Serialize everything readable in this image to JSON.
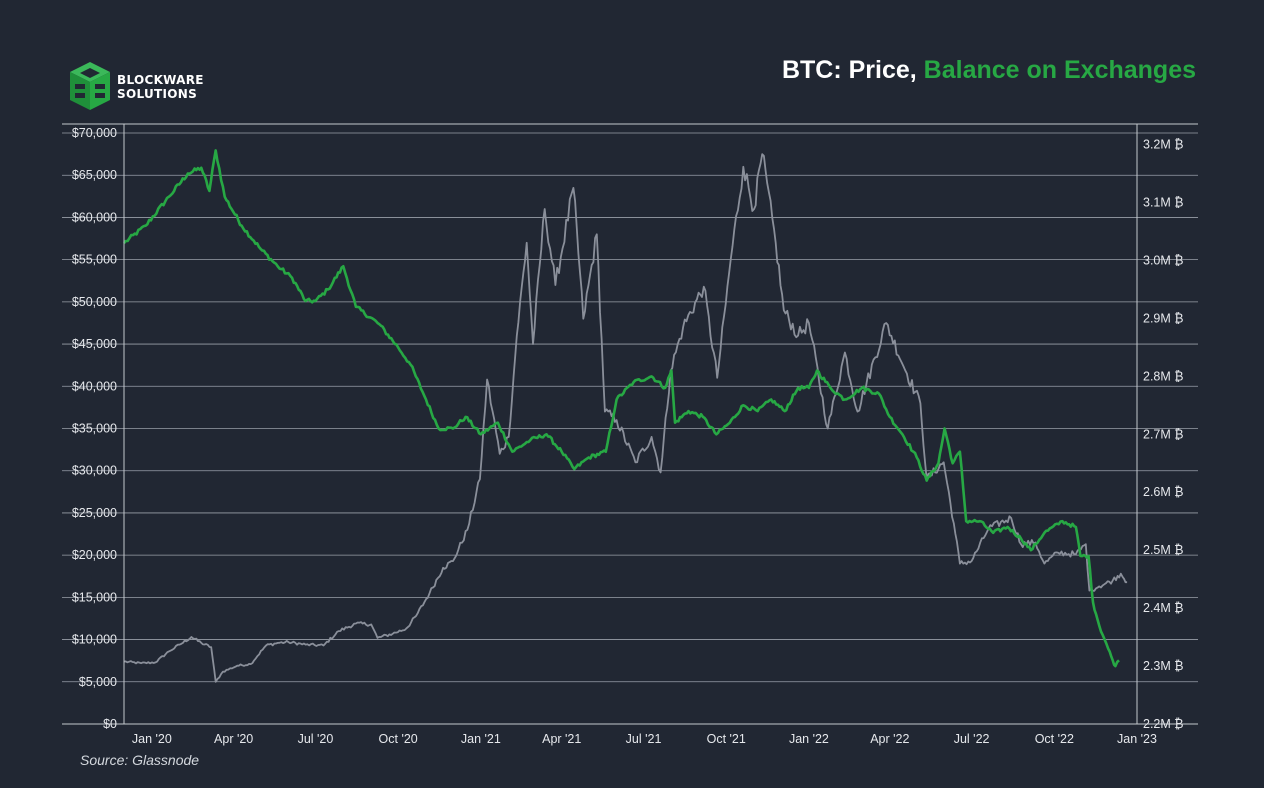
{
  "header": {
    "logo_line1": "BLOCKWARE",
    "logo_line2": "SOLUTIONS",
    "title_part1": "BTC: Price, ",
    "title_part2": "Balance on Exchanges"
  },
  "footer": {
    "source": "Source: Glassnode"
  },
  "colors": {
    "background": "#212733",
    "price": "#8a8f9a",
    "balance": "#27a844",
    "grid": "#9aa0aa",
    "logo": "#27a844"
  },
  "chart_data": {
    "type": "line",
    "title": "BTC: Price, Balance on Exchanges",
    "xlabel": "",
    "x_range": [
      "2019-12-01",
      "2023-01-01"
    ],
    "x_ticks": [
      {
        "label": "Jan '20",
        "date": "2020-01-01"
      },
      {
        "label": "Apr '20",
        "date": "2020-04-01"
      },
      {
        "label": "Jul '20",
        "date": "2020-07-01"
      },
      {
        "label": "Oct '20",
        "date": "2020-10-01"
      },
      {
        "label": "Jan '21",
        "date": "2021-01-01"
      },
      {
        "label": "Apr '21",
        "date": "2021-04-01"
      },
      {
        "label": "Jul '21",
        "date": "2021-07-01"
      },
      {
        "label": "Oct '21",
        "date": "2021-10-01"
      },
      {
        "label": "Jan '22",
        "date": "2022-01-01"
      },
      {
        "label": "Apr '22",
        "date": "2022-04-01"
      },
      {
        "label": "Jul '22",
        "date": "2022-07-01"
      },
      {
        "label": "Oct '22",
        "date": "2022-10-01"
      },
      {
        "label": "Jan '23",
        "date": "2023-01-01"
      }
    ],
    "y_left": {
      "range": [
        0,
        70000
      ],
      "ticks": [
        0,
        5000,
        10000,
        15000,
        20000,
        25000,
        30000,
        35000,
        40000,
        45000,
        50000,
        55000,
        60000,
        65000,
        70000
      ],
      "tick_labels": [
        "$0",
        "$5,000",
        "$10,000",
        "$15,000",
        "$20,000",
        "$25,000",
        "$30,000",
        "$35,000",
        "$40,000",
        "$45,000",
        "$50,000",
        "$55,000",
        "$60,000",
        "$65,000",
        "$70,000"
      ]
    },
    "y_right": {
      "range": [
        2.2,
        3.22
      ],
      "ticks": [
        2.2,
        2.3,
        2.4,
        2.5,
        2.6,
        2.7,
        2.8,
        2.9,
        3.0,
        3.1,
        3.2
      ],
      "tick_labels": [
        "2.2M ₿",
        "2.3M ₿",
        "2.4M ₿",
        "2.5M ₿",
        "2.6M ₿",
        "2.7M ₿",
        "2.8M ₿",
        "2.9M ₿",
        "3.0M ₿",
        "3.1M ₿",
        "3.2M ₿"
      ]
    },
    "grid": true,
    "series": [
      {
        "name": "Price",
        "axis": "left",
        "color": "#8a8f9a",
        "points": [
          [
            "2019-12-01",
            7400
          ],
          [
            "2019-12-20",
            7200
          ],
          [
            "2020-01-05",
            7300
          ],
          [
            "2020-01-20",
            8600
          ],
          [
            "2020-02-01",
            9400
          ],
          [
            "2020-02-14",
            10300
          ],
          [
            "2020-02-25",
            9600
          ],
          [
            "2020-03-07",
            9100
          ],
          [
            "2020-03-12",
            5000
          ],
          [
            "2020-03-20",
            6200
          ],
          [
            "2020-04-05",
            6900
          ],
          [
            "2020-04-20",
            7100
          ],
          [
            "2020-05-07",
            9300
          ],
          [
            "2020-05-20",
            9600
          ],
          [
            "2020-06-01",
            9700
          ],
          [
            "2020-06-20",
            9400
          ],
          [
            "2020-07-10",
            9300
          ],
          [
            "2020-07-27",
            11000
          ],
          [
            "2020-08-15",
            11900
          ],
          [
            "2020-09-01",
            11800
          ],
          [
            "2020-09-08",
            10200
          ],
          [
            "2020-09-25",
            10700
          ],
          [
            "2020-10-10",
            11300
          ],
          [
            "2020-10-21",
            12800
          ],
          [
            "2020-11-05",
            15500
          ],
          [
            "2020-11-20",
            18500
          ],
          [
            "2020-12-01",
            19300
          ],
          [
            "2020-12-17",
            23000
          ],
          [
            "2020-12-31",
            29000
          ],
          [
            "2021-01-08",
            40800
          ],
          [
            "2021-01-22",
            32000
          ],
          [
            "2021-02-01",
            34000
          ],
          [
            "2021-02-10",
            46000
          ],
          [
            "2021-02-21",
            57000
          ],
          [
            "2021-02-28",
            45000
          ],
          [
            "2021-03-13",
            61000
          ],
          [
            "2021-03-25",
            52000
          ],
          [
            "2021-04-14",
            63500
          ],
          [
            "2021-04-25",
            48000
          ],
          [
            "2021-05-10",
            58000
          ],
          [
            "2021-05-19",
            37000
          ],
          [
            "2021-06-01",
            36000
          ],
          [
            "2021-06-22",
            31000
          ],
          [
            "2021-07-10",
            34000
          ],
          [
            "2021-07-20",
            29800
          ],
          [
            "2021-07-31",
            41800
          ],
          [
            "2021-08-14",
            47000
          ],
          [
            "2021-09-06",
            51800
          ],
          [
            "2021-09-21",
            41000
          ],
          [
            "2021-10-06",
            55000
          ],
          [
            "2021-10-20",
            66000
          ],
          [
            "2021-11-01",
            61000
          ],
          [
            "2021-11-10",
            67500
          ],
          [
            "2021-11-25",
            57000
          ],
          [
            "2021-12-04",
            49000
          ],
          [
            "2021-12-20",
            46000
          ],
          [
            "2022-01-01",
            47500
          ],
          [
            "2022-01-22",
            35000
          ],
          [
            "2022-02-10",
            44000
          ],
          [
            "2022-02-24",
            37000
          ],
          [
            "2022-03-28",
            47500
          ],
          [
            "2022-04-20",
            41500
          ],
          [
            "2022-05-05",
            38000
          ],
          [
            "2022-05-12",
            29000
          ],
          [
            "2022-05-31",
            31000
          ],
          [
            "2022-06-13",
            22500
          ],
          [
            "2022-06-18",
            19000
          ],
          [
            "2022-07-01",
            19300
          ],
          [
            "2022-07-20",
            23200
          ],
          [
            "2022-08-14",
            24400
          ],
          [
            "2022-08-25",
            21300
          ],
          [
            "2022-09-10",
            21500
          ],
          [
            "2022-09-20",
            19000
          ],
          [
            "2022-10-05",
            20300
          ],
          [
            "2022-10-25",
            20100
          ],
          [
            "2022-11-05",
            21300
          ],
          [
            "2022-11-09",
            15800
          ],
          [
            "2022-11-20",
            16300
          ],
          [
            "2022-12-05",
            17000
          ],
          [
            "2022-12-14",
            17800
          ],
          [
            "2022-12-21",
            16800
          ]
        ]
      },
      {
        "name": "Balance on Exchanges",
        "axis": "right",
        "color": "#27a844",
        "points": [
          [
            "2019-12-01",
            3.03
          ],
          [
            "2019-12-25",
            3.06
          ],
          [
            "2020-01-20",
            3.11
          ],
          [
            "2020-02-10",
            3.15
          ],
          [
            "2020-02-25",
            3.16
          ],
          [
            "2020-03-05",
            3.12
          ],
          [
            "2020-03-12",
            3.19
          ],
          [
            "2020-03-22",
            3.11
          ],
          [
            "2020-04-10",
            3.06
          ],
          [
            "2020-05-01",
            3.02
          ],
          [
            "2020-05-20",
            2.99
          ],
          [
            "2020-06-05",
            2.97
          ],
          [
            "2020-06-20",
            2.93
          ],
          [
            "2020-07-01",
            2.93
          ],
          [
            "2020-07-15",
            2.95
          ],
          [
            "2020-08-01",
            2.99
          ],
          [
            "2020-08-15",
            2.92
          ],
          [
            "2020-09-10",
            2.89
          ],
          [
            "2020-10-01",
            2.85
          ],
          [
            "2020-10-15",
            2.82
          ],
          [
            "2020-11-01",
            2.76
          ],
          [
            "2020-11-15",
            2.71
          ],
          [
            "2020-12-01",
            2.71
          ],
          [
            "2020-12-15",
            2.73
          ],
          [
            "2021-01-01",
            2.7
          ],
          [
            "2021-01-20",
            2.72
          ],
          [
            "2021-02-05",
            2.67
          ],
          [
            "2021-02-25",
            2.69
          ],
          [
            "2021-03-15",
            2.7
          ],
          [
            "2021-04-01",
            2.67
          ],
          [
            "2021-04-15",
            2.64
          ],
          [
            "2021-05-01",
            2.66
          ],
          [
            "2021-05-20",
            2.67
          ],
          [
            "2021-06-01",
            2.76
          ],
          [
            "2021-06-20",
            2.79
          ],
          [
            "2021-07-10",
            2.8
          ],
          [
            "2021-07-25",
            2.78
          ],
          [
            "2021-08-01",
            2.81
          ],
          [
            "2021-08-05",
            2.72
          ],
          [
            "2021-08-20",
            2.74
          ],
          [
            "2021-09-05",
            2.73
          ],
          [
            "2021-09-20",
            2.7
          ],
          [
            "2021-10-05",
            2.72
          ],
          [
            "2021-10-20",
            2.75
          ],
          [
            "2021-11-05",
            2.74
          ],
          [
            "2021-11-20",
            2.76
          ],
          [
            "2021-12-05",
            2.74
          ],
          [
            "2021-12-20",
            2.78
          ],
          [
            "2022-01-01",
            2.78
          ],
          [
            "2022-01-10",
            2.81
          ],
          [
            "2022-01-25",
            2.78
          ],
          [
            "2022-02-10",
            2.76
          ],
          [
            "2022-03-01",
            2.78
          ],
          [
            "2022-03-20",
            2.77
          ],
          [
            "2022-04-01",
            2.73
          ],
          [
            "2022-04-15",
            2.7
          ],
          [
            "2022-05-01",
            2.66
          ],
          [
            "2022-05-12",
            2.62
          ],
          [
            "2022-05-25",
            2.65
          ],
          [
            "2022-06-01",
            2.71
          ],
          [
            "2022-06-10",
            2.65
          ],
          [
            "2022-06-18",
            2.67
          ],
          [
            "2022-06-25",
            2.55
          ],
          [
            "2022-07-10",
            2.55
          ],
          [
            "2022-07-25",
            2.53
          ],
          [
            "2022-08-10",
            2.54
          ],
          [
            "2022-08-25",
            2.52
          ],
          [
            "2022-09-05",
            2.5
          ],
          [
            "2022-09-20",
            2.53
          ],
          [
            "2022-10-10",
            2.55
          ],
          [
            "2022-10-25",
            2.54
          ],
          [
            "2022-10-30",
            2.49
          ],
          [
            "2022-11-08",
            2.49
          ],
          [
            "2022-11-13",
            2.41
          ],
          [
            "2022-11-20",
            2.37
          ],
          [
            "2022-11-30",
            2.33
          ],
          [
            "2022-12-05",
            2.31
          ],
          [
            "2022-12-08",
            2.3
          ],
          [
            "2022-12-12",
            2.31
          ]
        ]
      }
    ]
  }
}
